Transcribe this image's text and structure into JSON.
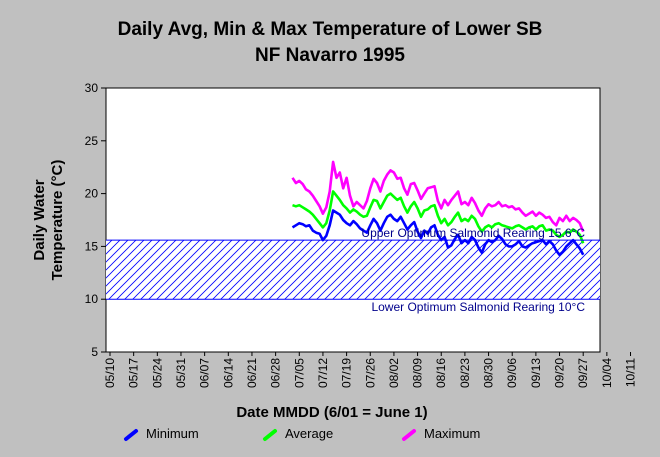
{
  "chart_data": {
    "type": "line",
    "title_lines": [
      "Daily Avg, Min & Max Temperature of Lower SB",
      "NF Navarro 1995"
    ],
    "xlabel": "Date MMDD (6/01 = June 1)",
    "ylabel_lines": [
      "Daily Water",
      "Temperature (°C)"
    ],
    "x_tick_labels": [
      "05/10",
      "05/17",
      "05/24",
      "05/31",
      "06/07",
      "06/14",
      "06/21",
      "06/28",
      "07/05",
      "07/12",
      "07/19",
      "07/26",
      "08/02",
      "08/09",
      "08/16",
      "08/23",
      "08/30",
      "09/06",
      "09/13",
      "09/20",
      "09/27",
      "10/04",
      "10/11"
    ],
    "ylim": [
      5,
      30
    ],
    "y_ticks": [
      5,
      10,
      15,
      20,
      25,
      30
    ],
    "y_tick_labels": [
      "5",
      "10",
      "15",
      "20",
      "25",
      "30"
    ],
    "grid": false,
    "legend_position": "bottom",
    "x": [
      "07/03",
      "07/04",
      "07/05",
      "07/06",
      "07/07",
      "07/08",
      "07/09",
      "07/10",
      "07/11",
      "07/12",
      "07/13",
      "07/14",
      "07/15",
      "07/16",
      "07/17",
      "07/18",
      "07/19",
      "07/20",
      "07/21",
      "07/22",
      "07/23",
      "07/24",
      "07/25",
      "07/26",
      "07/27",
      "07/28",
      "07/29",
      "07/30",
      "07/31",
      "08/01",
      "08/02",
      "08/03",
      "08/04",
      "08/05",
      "08/06",
      "08/07",
      "08/08",
      "08/09",
      "08/10",
      "08/11",
      "08/12",
      "08/13",
      "08/14",
      "08/15",
      "08/16",
      "08/17",
      "08/18",
      "08/19",
      "08/20",
      "08/21",
      "08/22",
      "08/23",
      "08/24",
      "08/25",
      "08/26",
      "08/27",
      "08/28",
      "08/29",
      "08/30",
      "08/31",
      "09/01",
      "09/02",
      "09/03",
      "09/04",
      "09/05",
      "09/06",
      "09/07",
      "09/08",
      "09/09",
      "09/10",
      "09/11",
      "09/12",
      "09/13",
      "09/14",
      "09/15",
      "09/16",
      "09/17",
      "09/18",
      "09/19",
      "09/20",
      "09/21",
      "09/22",
      "09/23",
      "09/24",
      "09/25",
      "09/26",
      "09/27"
    ],
    "series": [
      {
        "name": "Minimum",
        "color": "#0000ff",
        "values": [
          16.8,
          17.0,
          17.2,
          17.1,
          16.9,
          17.0,
          16.5,
          16.3,
          16.2,
          15.6,
          16.0,
          17.0,
          18.4,
          18.2,
          18.0,
          17.5,
          17.2,
          17.0,
          17.4,
          17.1,
          16.7,
          16.5,
          16.3,
          17.0,
          17.6,
          17.2,
          16.5,
          17.2,
          17.8,
          18.0,
          17.6,
          17.4,
          17.8,
          17.2,
          16.6,
          17.0,
          17.3,
          16.4,
          15.8,
          16.5,
          16.2,
          16.8,
          17.0,
          16.1,
          15.6,
          15.9,
          14.9,
          15.1,
          15.7,
          16.1,
          15.3,
          15.6,
          15.3,
          15.9,
          15.6,
          14.9,
          14.4,
          15.2,
          15.6,
          15.4,
          15.6,
          16.0,
          15.7,
          15.2,
          15.0,
          15.0,
          15.2,
          15.5,
          15.0,
          14.9,
          15.1,
          15.3,
          15.4,
          15.5,
          15.6,
          15.2,
          15.5,
          15.2,
          14.6,
          14.2,
          14.5,
          15.0,
          15.3,
          15.6,
          15.2,
          14.8,
          14.2
        ]
      },
      {
        "name": "Average",
        "color": "#00ff00",
        "values": [
          18.9,
          18.8,
          18.9,
          18.7,
          18.5,
          18.3,
          18.0,
          17.6,
          17.2,
          16.8,
          17.2,
          18.4,
          20.2,
          19.8,
          19.4,
          18.9,
          18.6,
          18.2,
          18.5,
          18.3,
          18.0,
          17.8,
          17.9,
          18.7,
          19.4,
          19.3,
          18.6,
          19.2,
          19.8,
          20.0,
          19.7,
          19.4,
          19.6,
          18.8,
          18.2,
          18.8,
          19.2,
          18.6,
          17.8,
          18.4,
          18.5,
          18.8,
          18.9,
          17.9,
          17.2,
          17.6,
          17.0,
          17.3,
          17.8,
          18.2,
          17.4,
          17.6,
          17.4,
          17.9,
          17.6,
          16.9,
          16.4,
          16.8,
          17.0,
          16.8,
          17.1,
          17.2,
          17.0,
          16.9,
          16.8,
          16.7,
          16.9,
          17.0,
          16.8,
          16.6,
          16.8,
          16.9,
          16.6,
          16.9,
          17.0,
          16.5,
          16.6,
          16.5,
          16.1,
          15.9,
          16.1,
          16.4,
          16.3,
          16.6,
          16.4,
          16.1,
          15.3
        ]
      },
      {
        "name": "Maximum",
        "color": "#ff00ff",
        "values": [
          21.5,
          21.0,
          21.2,
          20.9,
          20.4,
          20.2,
          19.8,
          19.3,
          18.8,
          18.1,
          18.7,
          20.2,
          23.0,
          21.5,
          22.0,
          20.5,
          21.5,
          19.8,
          18.8,
          19.2,
          18.9,
          18.6,
          19.3,
          20.5,
          21.4,
          21.0,
          20.2,
          21.2,
          21.8,
          22.2,
          22.0,
          21.4,
          21.5,
          20.5,
          19.9,
          20.9,
          21.0,
          20.3,
          19.5,
          20.0,
          20.5,
          20.6,
          20.7,
          19.3,
          18.6,
          19.4,
          18.9,
          19.4,
          19.8,
          20.2,
          19.0,
          19.2,
          18.9,
          19.6,
          19.1,
          18.4,
          17.9,
          18.6,
          19.0,
          18.8,
          18.9,
          19.2,
          18.8,
          18.9,
          18.7,
          18.8,
          18.5,
          18.6,
          18.2,
          17.9,
          18.1,
          18.3,
          17.9,
          18.2,
          18.0,
          17.7,
          17.8,
          17.3,
          17.0,
          17.7,
          17.4,
          17.9,
          17.4,
          17.7,
          17.5,
          17.2,
          16.4
        ]
      }
    ],
    "reference_lines": [
      {
        "label": "Upper Optimum Salmonid Rearing 15.6°C",
        "value": 15.6,
        "color": "#0000ff"
      },
      {
        "label": "Lower Optimum Salmonid Rearing 10°C",
        "value": 10,
        "color": "#0000ff"
      }
    ],
    "shaded_band": {
      "from": 10,
      "to": 15.6,
      "pattern": "diagonal-hatch",
      "color": "#0000ff",
      "fill": "#ffffff"
    }
  }
}
